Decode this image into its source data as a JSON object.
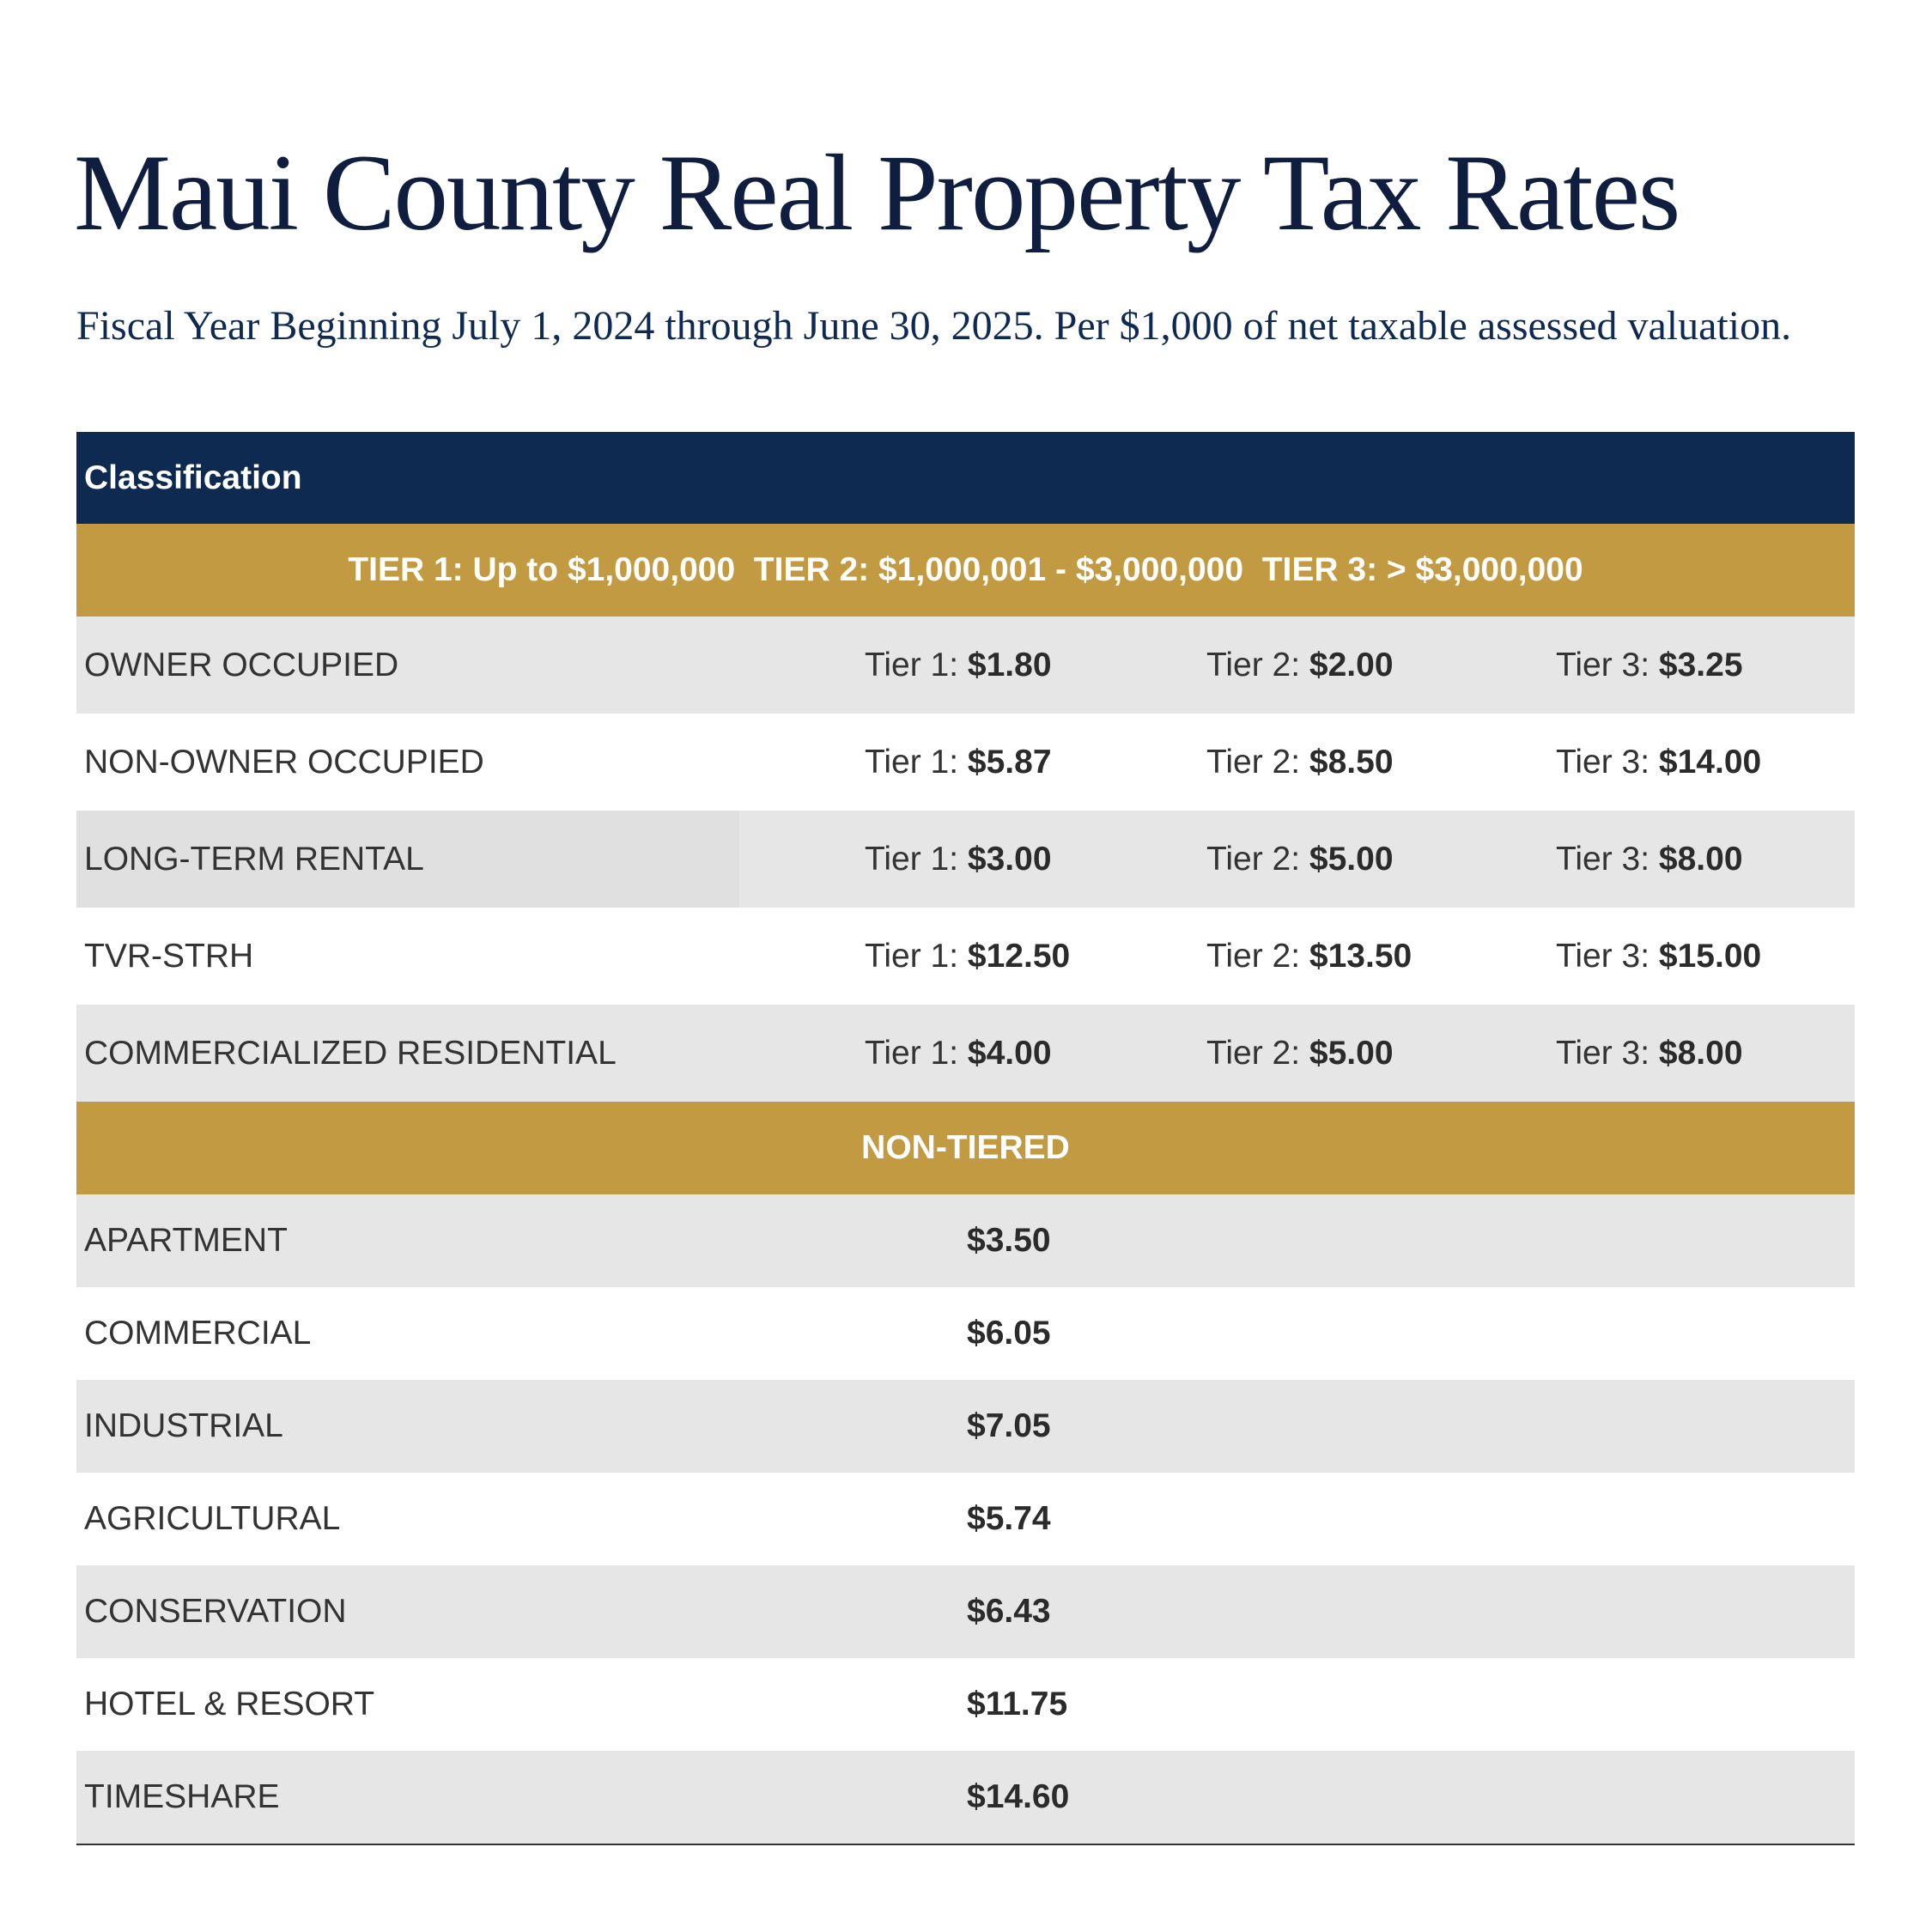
{
  "title": "Maui County Real Property Tax Rates",
  "subtitle": "Fiscal Year Beginning July 1, 2024 through June 30, 2025. Per $1,000 of net taxable assessed valuation.",
  "colors": {
    "navy": "#0e2a50",
    "gold": "#c19a41",
    "row_shade": "#e6e6e6"
  },
  "table": {
    "header": "Classification",
    "tier_band": "TIER 1: Up to $1,000,000  TIER 2: $1,000,001 - $3,000,000  TIER 3: > $3,000,000",
    "tier_labels": [
      "Tier 1:",
      "Tier 2:",
      "Tier 3:"
    ],
    "tiered_rows": [
      {
        "classification": "OWNER OCCUPIED",
        "tier1": "$1.80",
        "tier2": "$2.00",
        "tier3": "$3.25"
      },
      {
        "classification": "NON-OWNER OCCUPIED",
        "tier1": "$5.87",
        "tier2": "$8.50",
        "tier3": "$14.00"
      },
      {
        "classification": "LONG-TERM RENTAL",
        "tier1": "$3.00",
        "tier2": "$5.00",
        "tier3": "$8.00"
      },
      {
        "classification": "TVR-STRH",
        "tier1": "$12.50",
        "tier2": "$13.50",
        "tier3": "$15.00"
      },
      {
        "classification": "COMMERCIALIZED RESIDENTIAL",
        "tier1": "$4.00",
        "tier2": "$5.00",
        "tier3": "$8.00"
      }
    ],
    "non_tiered_band": "NON-TIERED",
    "non_tiered_rows": [
      {
        "classification": "APARTMENT",
        "rate": "$3.50"
      },
      {
        "classification": "COMMERCIAL",
        "rate": "$6.05"
      },
      {
        "classification": "INDUSTRIAL",
        "rate": "$7.05"
      },
      {
        "classification": "AGRICULTURAL",
        "rate": "$5.74"
      },
      {
        "classification": "CONSERVATION",
        "rate": "$6.43"
      },
      {
        "classification": "HOTEL & RESORT",
        "rate": "$11.75"
      },
      {
        "classification": "TIMESHARE",
        "rate": "$14.60"
      }
    ]
  }
}
